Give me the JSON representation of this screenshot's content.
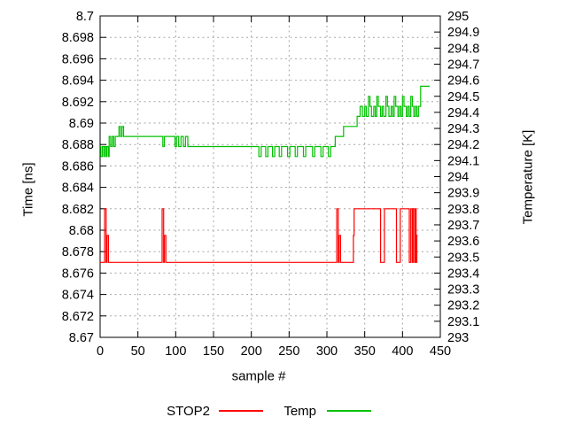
{
  "colors": {
    "background": "#ffffff",
    "text": "#000000",
    "border": "#000000",
    "grid": "#a6a6a6",
    "stop2": "#ff0000",
    "temp": "#00c000"
  },
  "legend": {
    "entries": [
      {
        "label": "STOP2",
        "color": "#ff0000"
      },
      {
        "label": "Temp",
        "color": "#00c000"
      }
    ]
  },
  "chart_data": {
    "type": "line",
    "title": "",
    "xlabel": "sample #",
    "ylabel": "Time [ns]",
    "y2label": "Temperature [K]",
    "grid": true,
    "legend_position": "bottom-center",
    "xlim": [
      0,
      450
    ],
    "ylim_left": [
      8.67,
      8.7
    ],
    "ylim_right": [
      293,
      295
    ],
    "x_tick_labels": [
      "0",
      "50",
      "100",
      "150",
      "200",
      "250",
      "300",
      "350",
      "400",
      "450"
    ],
    "y_left_tick_labels": [
      "8.7",
      "8.698",
      "8.696",
      "8.694",
      "8.692",
      "8.69",
      "8.688",
      "8.686",
      "8.684",
      "8.682",
      "8.68",
      "8.678",
      "8.676",
      "8.674",
      "8.672",
      "8.67"
    ],
    "y_right_tick_labels": [
      "295",
      "294.9",
      "294.8",
      "294.7",
      "294.6",
      "294.5",
      "294.4",
      "294.3",
      "294.2",
      "294.1",
      "294",
      "293.9",
      "293.8",
      "293.7",
      "293.6",
      "293.5",
      "293.4",
      "293.3",
      "293.2",
      "293.1",
      "293"
    ],
    "series": [
      {
        "name": "STOP2",
        "axis": "left",
        "color": "#ff0000",
        "interpolation": "step-after",
        "points": [
          [
            0,
            8.677
          ],
          [
            6,
            8.682
          ],
          [
            8,
            8.677
          ],
          [
            9,
            8.6795
          ],
          [
            11,
            8.677
          ],
          [
            82,
            8.682
          ],
          [
            84,
            8.677
          ],
          [
            85,
            8.6795
          ],
          [
            87,
            8.677
          ],
          [
            313,
            8.682
          ],
          [
            315,
            8.677
          ],
          [
            316,
            8.6795
          ],
          [
            318,
            8.677
          ],
          [
            335,
            8.6795
          ],
          [
            336,
            8.682
          ],
          [
            371,
            8.677
          ],
          [
            376,
            8.682
          ],
          [
            392,
            8.677
          ],
          [
            397,
            8.682
          ],
          [
            409,
            8.677
          ],
          [
            411,
            8.682
          ],
          [
            413,
            8.677
          ],
          [
            414,
            8.682
          ],
          [
            416,
            8.677
          ],
          [
            417,
            8.682
          ],
          [
            418,
            8.677
          ],
          [
            419,
            8.6795
          ],
          [
            420,
            8.6795
          ]
        ]
      },
      {
        "name": "Temp",
        "axis": "right",
        "color": "#00c000",
        "interpolation": "step-after",
        "points": [
          [
            0,
            294.1875
          ],
          [
            1,
            294.125
          ],
          [
            3,
            294.1875
          ],
          [
            5,
            294.125
          ],
          [
            6,
            294.1875
          ],
          [
            8,
            294.125
          ],
          [
            9,
            294.1875
          ],
          [
            11,
            294.125
          ],
          [
            12,
            294.25
          ],
          [
            14,
            294.1875
          ],
          [
            16,
            294.25
          ],
          [
            18,
            294.1875
          ],
          [
            20,
            294.25
          ],
          [
            25,
            294.3125
          ],
          [
            27,
            294.25
          ],
          [
            29,
            294.3125
          ],
          [
            31,
            294.25
          ],
          [
            83,
            294.1875
          ],
          [
            85,
            294.25
          ],
          [
            99,
            294.1875
          ],
          [
            101,
            294.25
          ],
          [
            104,
            294.1875
          ],
          [
            107,
            294.25
          ],
          [
            110,
            294.1875
          ],
          [
            113,
            294.25
          ],
          [
            116,
            294.1875
          ],
          [
            210,
            294.125
          ],
          [
            213,
            294.1875
          ],
          [
            219,
            294.125
          ],
          [
            222,
            294.1875
          ],
          [
            228,
            294.125
          ],
          [
            231,
            294.1875
          ],
          [
            237,
            294.125
          ],
          [
            240,
            294.1875
          ],
          [
            248,
            294.125
          ],
          [
            251,
            294.1875
          ],
          [
            258,
            294.125
          ],
          [
            261,
            294.1875
          ],
          [
            269,
            294.125
          ],
          [
            272,
            294.1875
          ],
          [
            281,
            294.125
          ],
          [
            284,
            294.1875
          ],
          [
            292,
            294.125
          ],
          [
            295,
            294.1875
          ],
          [
            302,
            294.125
          ],
          [
            305,
            294.1875
          ],
          [
            311,
            294.25
          ],
          [
            322,
            294.3125
          ],
          [
            340,
            294.375
          ],
          [
            344,
            294.4375
          ],
          [
            347,
            294.375
          ],
          [
            350,
            294.4375
          ],
          [
            352,
            294.375
          ],
          [
            355,
            294.5
          ],
          [
            357,
            294.4375
          ],
          [
            359,
            294.375
          ],
          [
            362,
            294.4375
          ],
          [
            364,
            294.375
          ],
          [
            366,
            294.5
          ],
          [
            368,
            294.4375
          ],
          [
            371,
            294.375
          ],
          [
            373,
            294.4375
          ],
          [
            375,
            294.375
          ],
          [
            378,
            294.5
          ],
          [
            380,
            294.4375
          ],
          [
            382,
            294.375
          ],
          [
            385,
            294.4375
          ],
          [
            387,
            294.375
          ],
          [
            389,
            294.5
          ],
          [
            391,
            294.4375
          ],
          [
            394,
            294.375
          ],
          [
            396,
            294.4375
          ],
          [
            398,
            294.375
          ],
          [
            400,
            294.5
          ],
          [
            402,
            294.4375
          ],
          [
            405,
            294.375
          ],
          [
            407,
            294.4375
          ],
          [
            409,
            294.375
          ],
          [
            411,
            294.5
          ],
          [
            413,
            294.4375
          ],
          [
            415,
            294.375
          ],
          [
            417,
            294.4375
          ],
          [
            419,
            294.375
          ],
          [
            421,
            294.4375
          ],
          [
            424,
            294.5625
          ],
          [
            436,
            294.5625
          ]
        ]
      }
    ]
  }
}
